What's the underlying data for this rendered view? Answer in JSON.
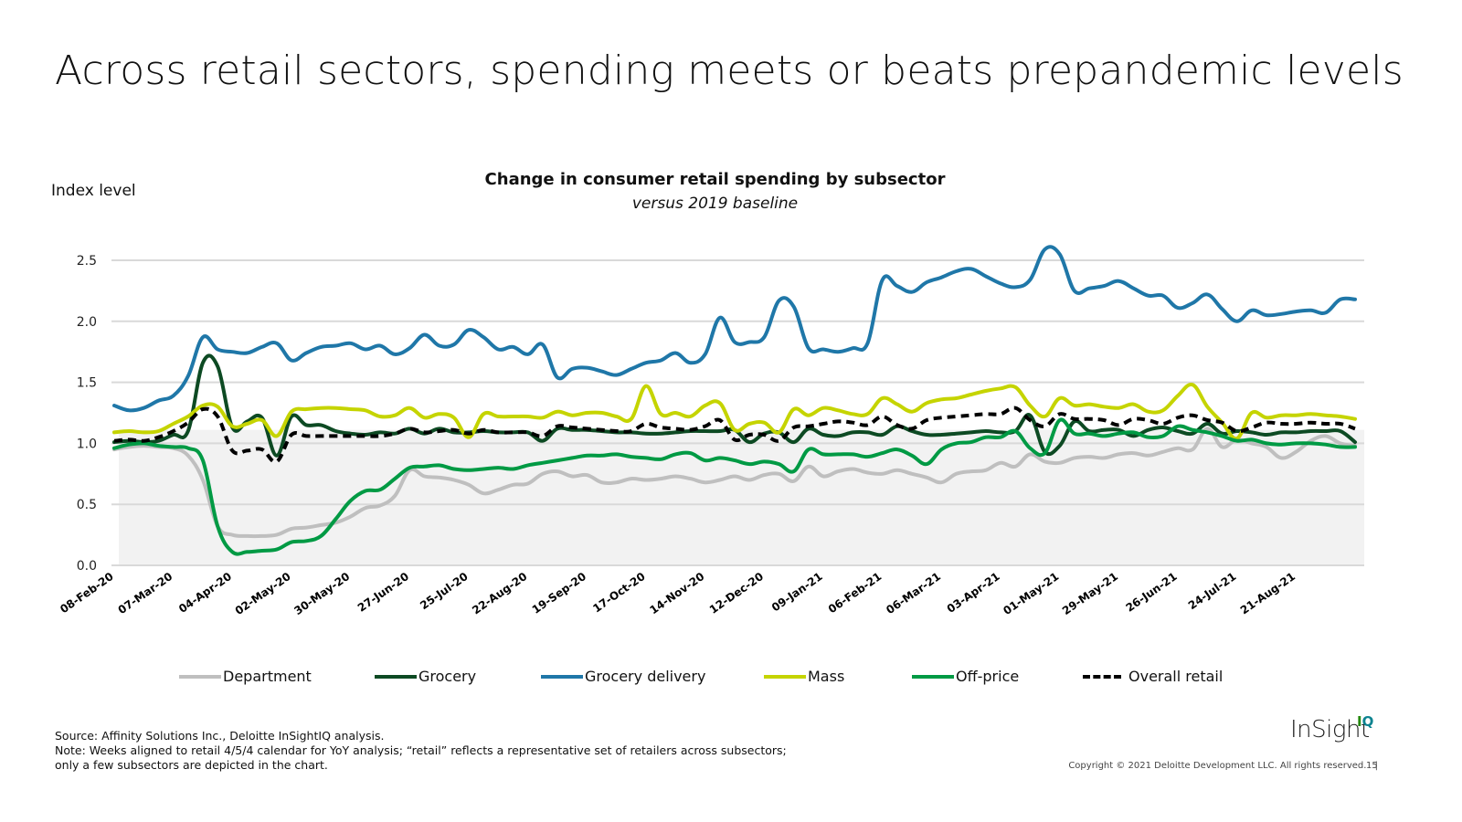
{
  "page": {
    "title": "Across retail sectors, spending meets or beats prepandemic levels",
    "footnote_source": "Source: Affinity Solutions Inc., Deloitte InSightIQ analysis.",
    "footnote_note_1": "Note: Weeks aligned to retail 4/5/4 calendar for YoY analysis; “retail” reflects a representative set of retailers across subsectors;",
    "footnote_note_2": "only a few subsectors are depicted in the chart.",
    "copyright": "Copyright © 2021 Deloitte Development LLC. All rights reserved.",
    "separator": "|",
    "page_number": "15",
    "logo_text": "InSight",
    "logo_suffix": "IQ",
    "logo_colors": {
      "I": "#26890D",
      "Q": "#0D8390"
    }
  },
  "chart_data": {
    "type": "line",
    "title": "Change in consumer retail spending by subsector",
    "subtitle": "versus 2019 baseline",
    "ylabel": "Index level",
    "xlabel": "",
    "ylim": [
      0,
      2.5
    ],
    "yticks": [
      "0.0",
      "0.5",
      "1.0",
      "1.5",
      "2.0",
      "2.5"
    ],
    "ytick_values": [
      0,
      0.5,
      1.0,
      1.5,
      2.0,
      2.5
    ],
    "grid": true,
    "shaded_band": {
      "from": 0,
      "to": 1.11,
      "color": "#F2F2F2"
    },
    "x_count": 85,
    "x_tick_every": 4,
    "x_tick_labels": [
      "08-Feb-20",
      "07-Mar-20",
      "04-Apr-20",
      "02-May-20",
      "30-May-20",
      "27-Jun-20",
      "25-Jul-20",
      "22-Aug-20",
      "19-Sep-20",
      "17-Oct-20",
      "14-Nov-20",
      "12-Dec-20",
      "09-Jan-21",
      "06-Feb-21",
      "06-Mar-21",
      "03-Apr-21",
      "01-May-21",
      "29-May-21",
      "26-Jun-21",
      "24-Jul-21",
      "21-Aug-21"
    ],
    "legend_position": "bottom",
    "series": [
      {
        "name": "Department",
        "color": "#BFBFBF",
        "dashed": false,
        "values": [
          0.95,
          0.97,
          0.98,
          0.97,
          0.96,
          0.9,
          0.7,
          0.32,
          0.25,
          0.24,
          0.24,
          0.25,
          0.3,
          0.31,
          0.33,
          0.35,
          0.4,
          0.47,
          0.49,
          0.57,
          0.78,
          0.73,
          0.72,
          0.7,
          0.66,
          0.59,
          0.62,
          0.66,
          0.67,
          0.75,
          0.77,
          0.73,
          0.74,
          0.68,
          0.68,
          0.71,
          0.7,
          0.71,
          0.73,
          0.71,
          0.68,
          0.7,
          0.73,
          0.7,
          0.74,
          0.75,
          0.69,
          0.81,
          0.73,
          0.77,
          0.79,
          0.76,
          0.75,
          0.78,
          0.75,
          0.72,
          0.68,
          0.75,
          0.77,
          0.78,
          0.84,
          0.81,
          0.91,
          0.85,
          0.84,
          0.88,
          0.89,
          0.88,
          0.91,
          0.92,
          0.9,
          0.93,
          0.96,
          0.95,
          1.12,
          0.97,
          1.03,
          1.0,
          0.97,
          0.88,
          0.93,
          1.02,
          1.06,
          1.0,
          0.98
        ]
      },
      {
        "name": "Grocery",
        "color": "#0D4A23",
        "dashed": false,
        "values": [
          1.01,
          1.02,
          1.01,
          1.02,
          1.07,
          1.1,
          1.66,
          1.63,
          1.13,
          1.18,
          1.21,
          0.9,
          1.22,
          1.15,
          1.15,
          1.1,
          1.08,
          1.07,
          1.09,
          1.08,
          1.12,
          1.08,
          1.12,
          1.09,
          1.09,
          1.1,
          1.09,
          1.09,
          1.09,
          1.02,
          1.12,
          1.11,
          1.11,
          1.1,
          1.09,
          1.09,
          1.08,
          1.08,
          1.09,
          1.1,
          1.1,
          1.1,
          1.11,
          1.01,
          1.08,
          1.09,
          1.01,
          1.12,
          1.07,
          1.06,
          1.09,
          1.09,
          1.07,
          1.14,
          1.1,
          1.07,
          1.07,
          1.08,
          1.09,
          1.1,
          1.09,
          1.1,
          1.23,
          0.93,
          0.98,
          1.18,
          1.1,
          1.11,
          1.11,
          1.06,
          1.11,
          1.13,
          1.1,
          1.08,
          1.16,
          1.08,
          1.1,
          1.09,
          1.07,
          1.09,
          1.09,
          1.1,
          1.1,
          1.1,
          1.01
        ]
      },
      {
        "name": "Grocery delivery",
        "color": "#1F77A8",
        "dashed": false,
        "values": [
          1.31,
          1.27,
          1.29,
          1.35,
          1.39,
          1.55,
          1.87,
          1.77,
          1.75,
          1.74,
          1.79,
          1.82,
          1.68,
          1.74,
          1.79,
          1.8,
          1.82,
          1.77,
          1.8,
          1.73,
          1.78,
          1.89,
          1.8,
          1.81,
          1.93,
          1.87,
          1.77,
          1.79,
          1.73,
          1.81,
          1.54,
          1.61,
          1.62,
          1.59,
          1.56,
          1.61,
          1.66,
          1.68,
          1.74,
          1.66,
          1.73,
          2.03,
          1.83,
          1.83,
          1.87,
          2.17,
          2.12,
          1.78,
          1.77,
          1.75,
          1.78,
          1.82,
          2.34,
          2.29,
          2.24,
          2.32,
          2.36,
          2.41,
          2.43,
          2.37,
          2.31,
          2.28,
          2.34,
          2.59,
          2.55,
          2.25,
          2.27,
          2.29,
          2.33,
          2.27,
          2.21,
          2.21,
          2.11,
          2.15,
          2.22,
          2.1,
          2.0,
          2.09,
          2.05,
          2.06,
          2.08,
          2.09,
          2.07,
          2.18,
          2.18
        ]
      },
      {
        "name": "Mass",
        "color": "#C5D400",
        "dashed": false,
        "values": [
          1.09,
          1.1,
          1.09,
          1.1,
          1.16,
          1.22,
          1.31,
          1.3,
          1.14,
          1.16,
          1.19,
          1.06,
          1.26,
          1.28,
          1.29,
          1.29,
          1.28,
          1.27,
          1.22,
          1.23,
          1.29,
          1.21,
          1.24,
          1.21,
          1.05,
          1.24,
          1.22,
          1.22,
          1.22,
          1.21,
          1.26,
          1.23,
          1.25,
          1.25,
          1.22,
          1.2,
          1.47,
          1.24,
          1.25,
          1.22,
          1.31,
          1.33,
          1.11,
          1.16,
          1.17,
          1.09,
          1.28,
          1.23,
          1.29,
          1.27,
          1.24,
          1.24,
          1.37,
          1.32,
          1.26,
          1.33,
          1.36,
          1.37,
          1.4,
          1.43,
          1.45,
          1.46,
          1.31,
          1.22,
          1.37,
          1.31,
          1.32,
          1.3,
          1.29,
          1.32,
          1.26,
          1.27,
          1.39,
          1.48,
          1.3,
          1.17,
          1.04,
          1.25,
          1.21,
          1.23,
          1.23,
          1.24,
          1.23,
          1.22,
          1.2
        ]
      },
      {
        "name": "Off-price",
        "color": "#009A44",
        "dashed": false,
        "values": [
          0.96,
          0.99,
          1.0,
          0.98,
          0.97,
          0.96,
          0.86,
          0.32,
          0.11,
          0.11,
          0.12,
          0.13,
          0.19,
          0.2,
          0.24,
          0.38,
          0.53,
          0.61,
          0.62,
          0.71,
          0.8,
          0.81,
          0.82,
          0.79,
          0.78,
          0.79,
          0.8,
          0.79,
          0.82,
          0.84,
          0.86,
          0.88,
          0.9,
          0.9,
          0.91,
          0.89,
          0.88,
          0.87,
          0.91,
          0.92,
          0.86,
          0.88,
          0.86,
          0.83,
          0.85,
          0.83,
          0.77,
          0.95,
          0.91,
          0.91,
          0.91,
          0.89,
          0.92,
          0.95,
          0.9,
          0.83,
          0.95,
          1.0,
          1.01,
          1.05,
          1.05,
          1.1,
          0.96,
          0.92,
          1.19,
          1.08,
          1.08,
          1.06,
          1.08,
          1.09,
          1.05,
          1.06,
          1.14,
          1.11,
          1.09,
          1.06,
          1.02,
          1.03,
          1.0,
          0.99,
          1.0,
          1.0,
          0.99,
          0.97,
          0.97
        ]
      },
      {
        "name": "Overall retail",
        "color": "#000000",
        "dashed": true,
        "values": [
          1.02,
          1.03,
          1.02,
          1.05,
          1.1,
          1.17,
          1.28,
          1.22,
          0.94,
          0.94,
          0.95,
          0.85,
          1.07,
          1.06,
          1.06,
          1.06,
          1.06,
          1.06,
          1.06,
          1.08,
          1.12,
          1.09,
          1.1,
          1.11,
          1.08,
          1.11,
          1.09,
          1.09,
          1.09,
          1.06,
          1.14,
          1.13,
          1.12,
          1.11,
          1.1,
          1.1,
          1.16,
          1.13,
          1.12,
          1.11,
          1.14,
          1.19,
          1.03,
          1.07,
          1.07,
          1.02,
          1.13,
          1.14,
          1.16,
          1.18,
          1.17,
          1.15,
          1.22,
          1.15,
          1.12,
          1.19,
          1.21,
          1.22,
          1.23,
          1.24,
          1.24,
          1.29,
          1.19,
          1.14,
          1.24,
          1.2,
          1.2,
          1.19,
          1.15,
          1.2,
          1.19,
          1.16,
          1.21,
          1.23,
          1.19,
          1.17,
          1.1,
          1.13,
          1.17,
          1.16,
          1.16,
          1.17,
          1.16,
          1.16,
          1.12
        ]
      }
    ]
  }
}
